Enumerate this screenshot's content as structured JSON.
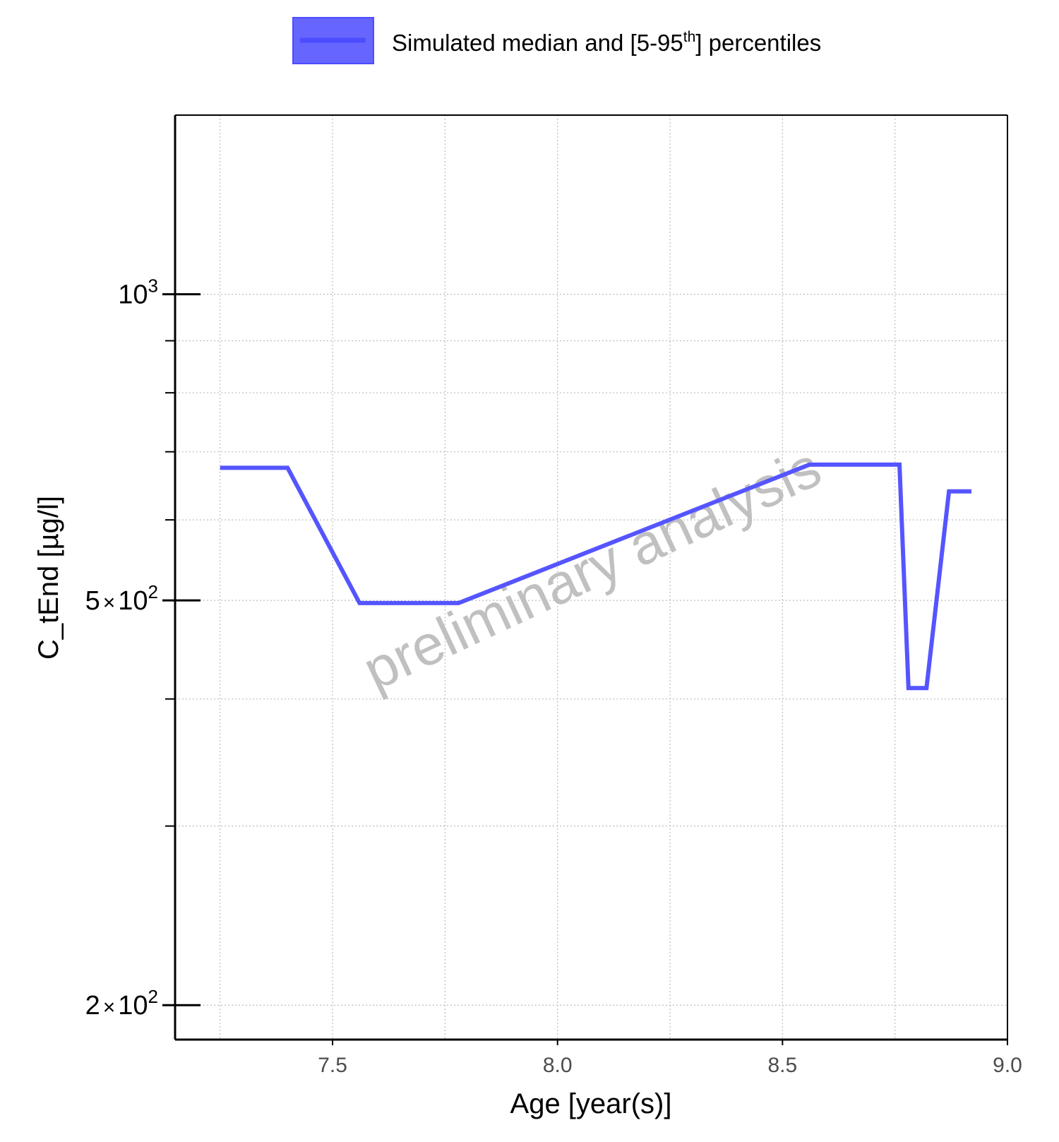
{
  "chart_data": {
    "type": "line",
    "xlabel": "Age [year(s)]",
    "ylabel": "C_tEnd [µg/l]",
    "y_scale": "log",
    "xlim": [
      7.15,
      9.0
    ],
    "ylim": [
      185,
      1500
    ],
    "x_ticks": [
      7.5,
      8.0,
      8.5,
      9.0
    ],
    "x_tick_labels": [
      "7.5",
      "8.0",
      "8.5",
      "9.0"
    ],
    "x_minor_grid": [
      7.25,
      7.75,
      8.25,
      8.75
    ],
    "y_ticks": [
      {
        "value": 1000,
        "mantissa": "",
        "base": "10",
        "exp": "3"
      },
      {
        "value": 500,
        "mantissa": "5",
        "base": "10",
        "exp": "2"
      },
      {
        "value": 200,
        "mantissa": "2",
        "base": "10",
        "exp": "2"
      }
    ],
    "y_minor_ticks": [
      900,
      800,
      700,
      600,
      400,
      300
    ],
    "grid": true,
    "legend": {
      "position": "top",
      "label_main": "Simulated median and [5-95",
      "label_sup": "th",
      "label_end": "] percentiles",
      "fill_color": "#6666ff",
      "line_color": "#4d4dff"
    },
    "watermark": "preliminary analysis",
    "series": [
      {
        "name": "Simulated median and [5-95th] percentiles",
        "color": "#5555ff",
        "x": [
          7.25,
          7.4,
          7.56,
          7.78,
          8.56,
          8.76,
          8.78,
          8.82,
          8.87,
          8.92
        ],
        "y": [
          675,
          675,
          497,
          497,
          680,
          680,
          410,
          410,
          640,
          640
        ]
      }
    ]
  }
}
